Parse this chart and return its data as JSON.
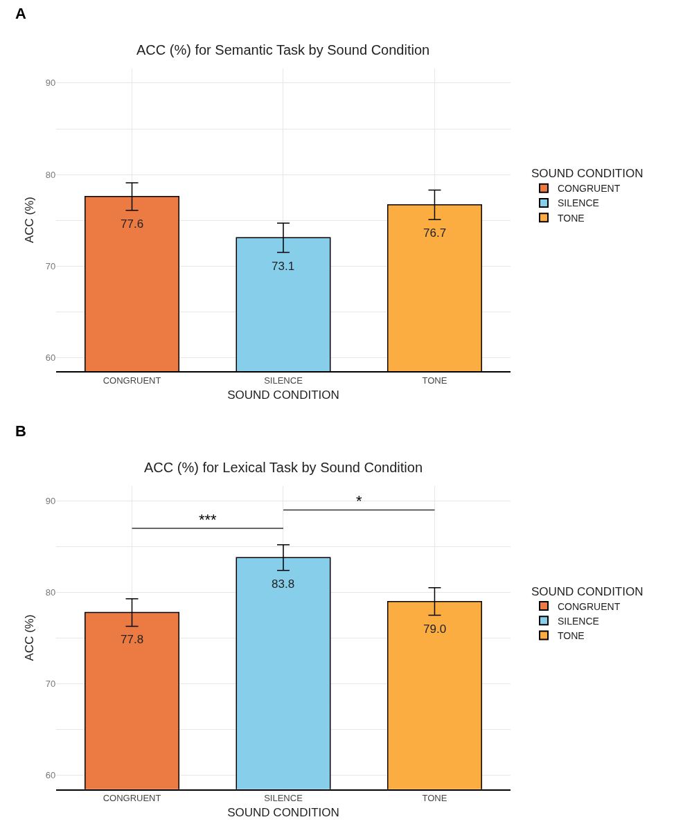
{
  "chart_data": [
    {
      "type": "bar",
      "title": "ACC (%) for Semantic Task by Sound Condition",
      "xlabel": "SOUND CONDITION",
      "ylabel": "ACC (%)",
      "legend_title": "SOUND CONDITION",
      "categories": [
        "CONGRUENT",
        "SILENCE",
        "TONE"
      ],
      "series": [
        {
          "name": "CONGRUENT",
          "color": "#ec7a43",
          "values": [
            77.6,
            null,
            null
          ],
          "errors": [
            1.5,
            null,
            null
          ],
          "value_labels": [
            "77.6",
            null,
            null
          ]
        },
        {
          "name": "SILENCE",
          "color": "#87ceeb",
          "values": [
            null,
            73.1,
            null
          ],
          "errors": [
            null,
            1.6,
            null
          ],
          "value_labels": [
            null,
            "73.1",
            null
          ]
        },
        {
          "name": "TONE",
          "color": "#fbad42",
          "values": [
            null,
            null,
            76.7
          ],
          "errors": [
            null,
            null,
            1.6
          ],
          "value_labels": [
            null,
            null,
            "76.7"
          ]
        }
      ],
      "ylim": [
        58.5,
        91.6
      ],
      "yticks": [
        60,
        {
          "value": 65,
          "label": null
        },
        70,
        {
          "value": 75,
          "label": null
        },
        80,
        {
          "value": 85,
          "label": null
        },
        90
      ],
      "grid": true,
      "legend": "right",
      "annotations": [
        "A"
      ]
    },
    {
      "type": "bar",
      "title": "ACC (%) for Lexical Task by Sound Condition",
      "xlabel": "SOUND CONDITION",
      "ylabel": "ACC (%)",
      "legend_title": "SOUND CONDITION",
      "categories": [
        "CONGRUENT",
        "SILENCE",
        "TONE"
      ],
      "series": [
        {
          "name": "CONGRUENT",
          "color": "#ec7a43",
          "values": [
            77.8,
            null,
            null
          ],
          "errors": [
            1.5,
            null,
            null
          ],
          "value_labels": [
            "77.8",
            null,
            null
          ]
        },
        {
          "name": "SILENCE",
          "color": "#87ceeb",
          "values": [
            null,
            83.8,
            null
          ],
          "errors": [
            null,
            1.4,
            null
          ],
          "value_labels": [
            null,
            "83.8",
            null
          ]
        },
        {
          "name": "TONE",
          "color": "#fbad42",
          "values": [
            null,
            null,
            79.0
          ],
          "errors": [
            null,
            null,
            1.5
          ],
          "value_labels": [
            null,
            null,
            "79.0"
          ]
        }
      ],
      "ylim": [
        58.5,
        91.6
      ],
      "yticks": [
        60,
        {
          "value": 65,
          "label": null
        },
        70,
        {
          "value": 75,
          "label": null
        },
        80,
        {
          "value": 85,
          "label": null
        },
        90
      ],
      "grid": true,
      "legend": "right",
      "annotations": [
        "B",
        "***",
        "*"
      ]
    }
  ]
}
